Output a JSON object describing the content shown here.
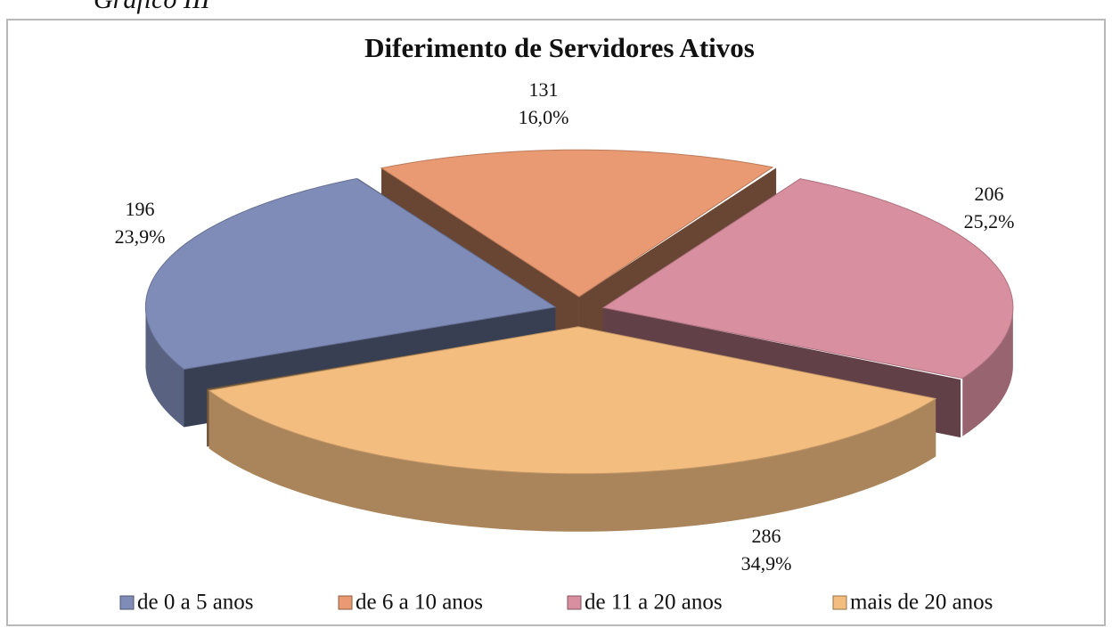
{
  "header_text": "Gráfico III",
  "chart_data": {
    "type": "pie3d",
    "title": "Diferimento de Servidores Ativos",
    "categories": [
      "de 0 a 5 anos",
      "de 6 a 10 anos",
      "de 11 a 20 anos",
      "mais de 20 anos"
    ],
    "values": [
      196,
      131,
      206,
      286
    ],
    "percentages": [
      23.9,
      16.0,
      25.2,
      34.9
    ],
    "percentage_labels": [
      "23,9%",
      "16,0%",
      "25,2%",
      "34,9%"
    ],
    "colors": [
      "#7f8cb8",
      "#e99a72",
      "#d88f9f",
      "#f3bd80"
    ],
    "legend": "bottom"
  }
}
